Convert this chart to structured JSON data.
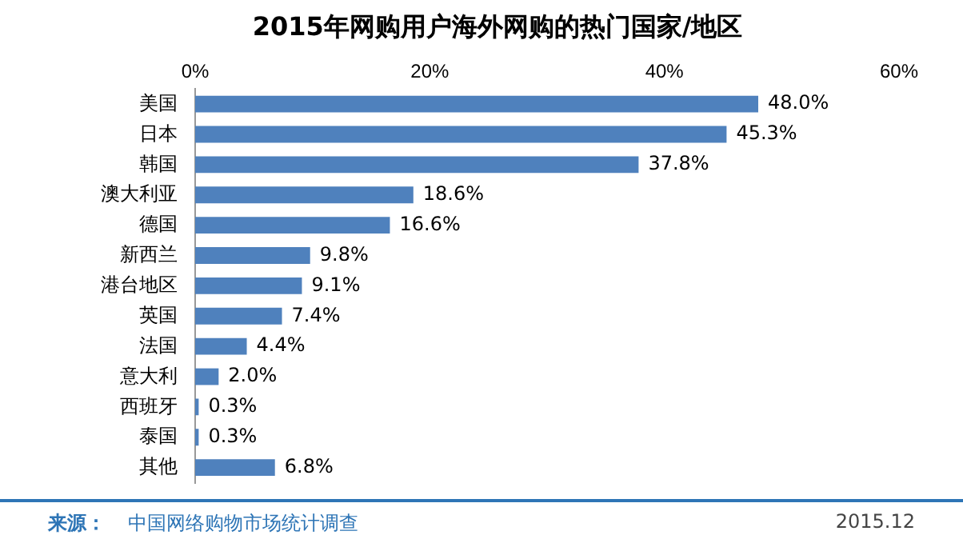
{
  "chart_data": {
    "type": "bar",
    "orientation": "horizontal",
    "title": "2015年网购用户海外网购的热门国家/地区",
    "categories": [
      "美国",
      "日本",
      "韩国",
      "澳大利亚",
      "德国",
      "新西兰",
      "港台地区",
      "英国",
      "法国",
      "意大利",
      "西班牙",
      "泰国",
      "其他"
    ],
    "values": [
      48.0,
      45.3,
      37.8,
      18.6,
      16.6,
      9.8,
      9.1,
      7.4,
      4.4,
      2.0,
      0.3,
      0.3,
      6.8
    ],
    "value_labels": [
      "48.0%",
      "45.3%",
      "37.8%",
      "18.6%",
      "16.6%",
      "9.8%",
      "9.1%",
      "7.4%",
      "4.4%",
      "2.0%",
      "0.3%",
      "0.3%",
      "6.8%"
    ],
    "color": "#4f81bd",
    "xlim": [
      0,
      60
    ],
    "xticks": [
      {
        "value": 0,
        "label": "0%"
      },
      {
        "value": 20,
        "label": "20%"
      },
      {
        "value": 40,
        "label": "40%"
      },
      {
        "value": 60,
        "label": "60%"
      }
    ],
    "grid": false,
    "legend": false,
    "annotations": [
      "来源：",
      "中国网络购物市场统计调查",
      "2015.12"
    ]
  }
}
